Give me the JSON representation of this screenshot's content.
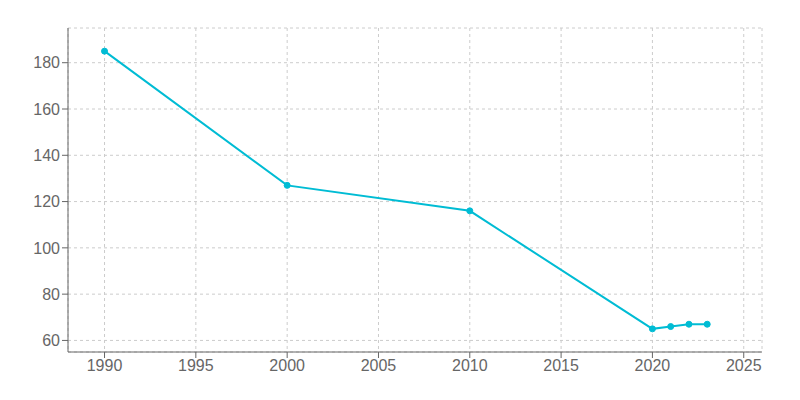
{
  "chart_data": {
    "type": "line",
    "x": [
      1990,
      2000,
      2010,
      2020,
      2021,
      2022,
      2023
    ],
    "values": [
      185,
      127,
      116,
      65,
      66,
      67,
      67
    ],
    "color": "#00bcd4",
    "marker": "o",
    "xlim": [
      1988,
      2026
    ],
    "ylim": [
      55,
      195
    ],
    "xticks": [
      1990,
      1995,
      2000,
      2005,
      2010,
      2015,
      2020,
      2025
    ],
    "yticks": [
      60,
      80,
      100,
      120,
      140,
      160,
      180
    ],
    "grid": true
  }
}
